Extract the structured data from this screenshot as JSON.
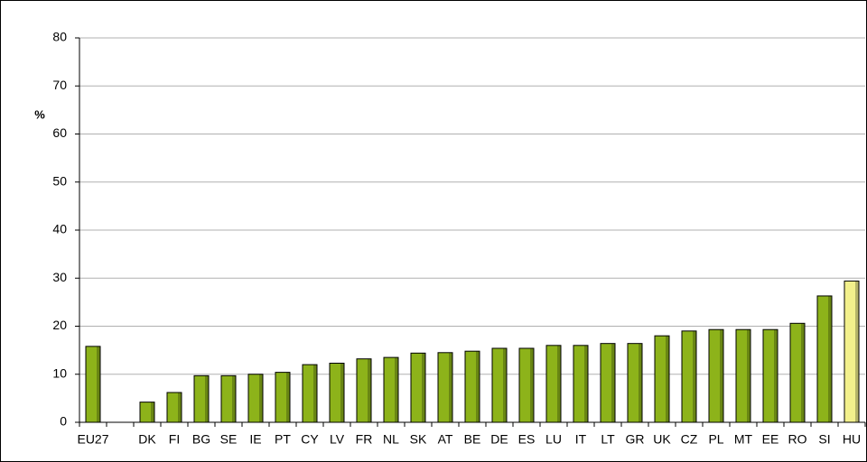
{
  "chart_data": {
    "type": "bar",
    "y_label": "%",
    "categories": [
      "EU27",
      null,
      "DK",
      "FI",
      "BG",
      "SE",
      "IE",
      "PT",
      "CY",
      "LV",
      "FR",
      "NL",
      "SK",
      "AT",
      "BE",
      "DE",
      "ES",
      "LU",
      "IT",
      "LT",
      "GR",
      "UK",
      "CZ",
      "PL",
      "MT",
      "EE",
      "RO",
      "SI",
      "HU"
    ],
    "values": [
      15.8,
      null,
      4.2,
      6.2,
      9.7,
      9.7,
      10.0,
      10.4,
      12.0,
      12.3,
      13.2,
      13.5,
      14.4,
      14.5,
      14.8,
      15.4,
      15.4,
      16.0,
      16.0,
      16.4,
      16.4,
      18.0,
      19.0,
      19.3,
      19.3,
      19.3,
      20.6,
      26.3,
      29.4
    ],
    "colors": [
      "#8db31a",
      null,
      "#8db31a",
      "#8db31a",
      "#8db31a",
      "#8db31a",
      "#8db31a",
      "#8db31a",
      "#8db31a",
      "#8db31a",
      "#8db31a",
      "#8db31a",
      "#8db31a",
      "#8db31a",
      "#8db31a",
      "#8db31a",
      "#8db31a",
      "#8db31a",
      "#8db31a",
      "#8db31a",
      "#8db31a",
      "#8db31a",
      "#8db31a",
      "#8db31a",
      "#8db31a",
      "#8db31a",
      "#8db31a",
      "#8db31a",
      "#f2f08c"
    ],
    "ylim": [
      0,
      80
    ],
    "yticks": [
      0,
      10,
      20,
      30,
      40,
      50,
      60,
      70,
      80
    ],
    "grid": true
  }
}
